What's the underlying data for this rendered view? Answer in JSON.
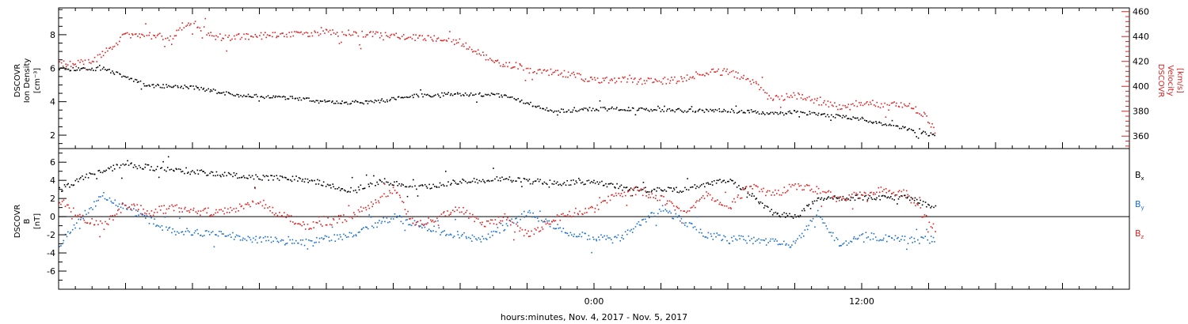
{
  "xaxis_title": "hours:minutes, Nov.  4, 2017 - Nov.  5, 2017",
  "chart_data": [
    {
      "type": "scatter",
      "panel": "top",
      "ylabel_left": [
        "DSCOVR",
        "Ion Density",
        "[cm⁻³]"
      ],
      "ylabel_right": [
        "DSCOVR",
        "Velocity",
        "[km/s]"
      ],
      "left_axis_color": "#000000",
      "right_axis_color": "#dd2222",
      "ylim_left": [
        1.2,
        9.6
      ],
      "ylim_right": [
        350,
        463
      ],
      "yticks_left": [
        "2",
        "4",
        "6",
        "8"
      ],
      "yticks_right": [
        "360",
        "380",
        "400",
        "420",
        "440",
        "460"
      ],
      "series": [
        {
          "key": "density",
          "axis": "left",
          "color": "#000000",
          "x": [
            -24,
            -22,
            -20,
            -18,
            -16,
            -14,
            -12.5,
            -12,
            -10,
            -8,
            -6,
            -4,
            -2,
            -1,
            0,
            2,
            4,
            6,
            8,
            9,
            10,
            12,
            14,
            15.3
          ],
          "y": [
            6.0,
            6.0,
            5.0,
            4.9,
            4.4,
            4.3,
            4.1,
            4.0,
            4.0,
            4.4,
            4.5,
            4.4,
            3.5,
            3.5,
            3.6,
            3.6,
            3.5,
            3.5,
            3.3,
            3.4,
            3.3,
            3.0,
            2.4,
            2.0
          ]
        },
        {
          "key": "velocity",
          "axis": "right",
          "color": "#dd2222",
          "x": [
            -24,
            -22.5,
            -21,
            -19,
            -18,
            -17,
            -16,
            -14,
            -12,
            -10,
            -8,
            -6,
            -4.5,
            -3,
            -1,
            0,
            1,
            2,
            4,
            5,
            6,
            7,
            8,
            9,
            10,
            11,
            12,
            13,
            14,
            14.8,
            15.3
          ],
          "y": [
            418,
            420,
            442,
            440,
            452,
            440,
            440,
            442,
            444,
            442,
            440,
            436,
            420,
            414,
            410,
            405,
            406,
            404,
            406,
            412,
            412,
            405,
            390,
            393,
            388,
            384,
            388,
            385,
            386,
            378,
            364
          ]
        }
      ]
    },
    {
      "type": "scatter",
      "panel": "bottom",
      "ylabel_left": [
        "DSCOVR",
        "B",
        "[nT]"
      ],
      "ylim": [
        -8.0,
        7.5
      ],
      "yticks": [
        "-6",
        "-4",
        "-2",
        "0",
        "2",
        "4",
        "6"
      ],
      "legend": [
        {
          "text": "B",
          "sub": "x",
          "color": "#000000"
        },
        {
          "text": "B",
          "sub": "y",
          "color": "#1a6fcc"
        },
        {
          "text": "B",
          "sub": "z",
          "color": "#dd2222"
        }
      ],
      "series": [
        {
          "key": "bx",
          "color": "#000000",
          "x": [
            -24,
            -22.5,
            -21,
            -19,
            -17,
            -15,
            -13,
            -11,
            -9.5,
            -8,
            -6,
            -4,
            -2,
            0,
            2,
            4,
            6,
            7,
            8,
            9,
            10,
            12,
            14,
            15.3
          ],
          "y": [
            3.0,
            4.8,
            5.8,
            5.2,
            4.8,
            4.4,
            4.2,
            3.0,
            4.0,
            3.2,
            4.0,
            4.2,
            3.8,
            3.8,
            3.0,
            3.0,
            4.2,
            2.5,
            0.5,
            0.0,
            2.0,
            2.2,
            2.2,
            1.0
          ]
        },
        {
          "key": "by",
          "color": "#1a6fcc",
          "x": [
            -24,
            -23,
            -22,
            -21,
            -19,
            -17,
            -15,
            -13,
            -11,
            -9,
            -7,
            -5,
            -3,
            -1,
            1,
            3,
            5,
            7,
            9,
            10,
            11,
            12,
            14,
            15.3
          ],
          "y": [
            -3.0,
            0.0,
            2.5,
            1.0,
            -1.5,
            -1.8,
            -2.5,
            -2.8,
            -2.0,
            0.0,
            -1.5,
            -2.5,
            0.5,
            -2.0,
            -2.5,
            1.0,
            -2.0,
            -2.5,
            -3.0,
            0.5,
            -3.2,
            -2.0,
            -2.5,
            -2.5
          ]
        },
        {
          "key": "bz",
          "color": "#dd2222",
          "x": [
            -24,
            -23,
            -22,
            -21,
            -20,
            -19,
            -17,
            -15,
            -13,
            -11,
            -9,
            -8,
            -7,
            -6,
            -5,
            -4,
            -3,
            -2,
            -1,
            0,
            1,
            2,
            3,
            4,
            5,
            6,
            7,
            8,
            9,
            10,
            11,
            12,
            13,
            14,
            15.3
          ],
          "y": [
            2.0,
            0.0,
            -1.0,
            1.5,
            0.5,
            1.0,
            0.5,
            1.5,
            -1.0,
            0.0,
            3.0,
            -1.0,
            0.0,
            1.0,
            -1.0,
            0.0,
            -2.0,
            -0.5,
            0.5,
            1.0,
            2.5,
            3.0,
            2.0,
            0.5,
            2.5,
            1.0,
            3.5,
            2.5,
            3.5,
            3.0,
            2.0,
            2.5,
            3.0,
            2.5,
            -1.5
          ]
        }
      ]
    }
  ],
  "xaxis": {
    "xlim": [
      -24,
      24
    ],
    "tick_labels": [
      {
        "x": 0,
        "label": "0:00"
      },
      {
        "x": 12,
        "label": "12:00"
      }
    ],
    "major_ticks": [
      -21,
      -18,
      -15,
      -12,
      -9,
      -6,
      -3,
      0,
      3,
      6,
      9,
      12,
      15,
      18,
      21
    ]
  }
}
